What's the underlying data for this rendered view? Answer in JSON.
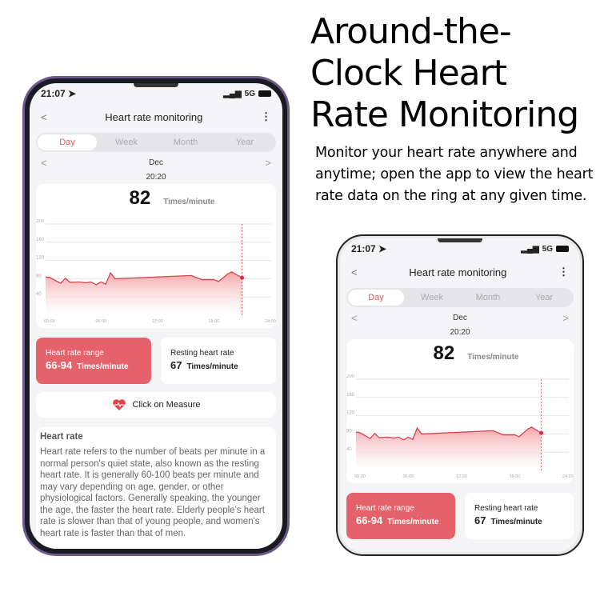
{
  "headline": {
    "lines": [
      "Around-the-",
      "Clock Heart",
      " Rate Monitoring"
    ],
    "subtitle": "Monitor your heart rate anywhere and anytime; open the app to view the heart rate data on the ring at any given time."
  },
  "status": {
    "time": "21:07",
    "network": "5G"
  },
  "header": {
    "title": "Heart rate monitoring",
    "back": "<",
    "more": "⋮"
  },
  "tabs": [
    {
      "label": "Day",
      "active": true
    },
    {
      "label": "Week"
    },
    {
      "label": "Month"
    },
    {
      "label": "Year"
    }
  ],
  "date": {
    "label": "Dec",
    "prev": "<",
    "next": ">",
    "time": "20:20"
  },
  "current": {
    "value": "82",
    "unit": "Times/minute"
  },
  "range_card": {
    "label": "Heart rate range",
    "value": "66-94",
    "unit": "Times/minute"
  },
  "resting_card": {
    "label": "Resting heart rate",
    "value": "67",
    "unit": "Times/minute"
  },
  "measure": {
    "label": "Click on Measure"
  },
  "info": {
    "title": "Heart rate",
    "text": "Heart rate refers to the number of beats per minute in a normal person's quiet state, also known as the resting heart rate. It is generally 60-100 beats per minute and may vary depending on age, gender, or other physiological factors. Generally speaking, the younger the age, the faster the heart rate. Elderly people's heart rate is slower than that of young people, and women's heart rate is faster than that of men."
  },
  "colors": {
    "accent": "#e6626a",
    "line": "#d9434b"
  },
  "chart_data": {
    "type": "area",
    "ylim": [
      0,
      200
    ],
    "yticks": [
      40,
      80,
      120,
      160,
      200
    ],
    "xlim": [
      0,
      24
    ],
    "xticks": [
      "00:00",
      "06:00",
      "12:00",
      "18:00",
      "24:00"
    ],
    "grid": true,
    "x": [
      0,
      0.4,
      1.6,
      2.1,
      2.6,
      3.6,
      4.3,
      4.8,
      5.4,
      5.9,
      6.4,
      6.9,
      7.4,
      15.5,
      16.6,
      17.9,
      18.4,
      19.4,
      19.8,
      20.9
    ],
    "y": [
      84,
      83,
      70,
      81,
      72,
      73,
      71,
      73,
      67,
      73,
      68,
      93,
      80,
      87,
      78,
      78,
      74,
      91,
      95,
      82
    ],
    "selected": {
      "x": 20.9,
      "y": 82
    }
  }
}
